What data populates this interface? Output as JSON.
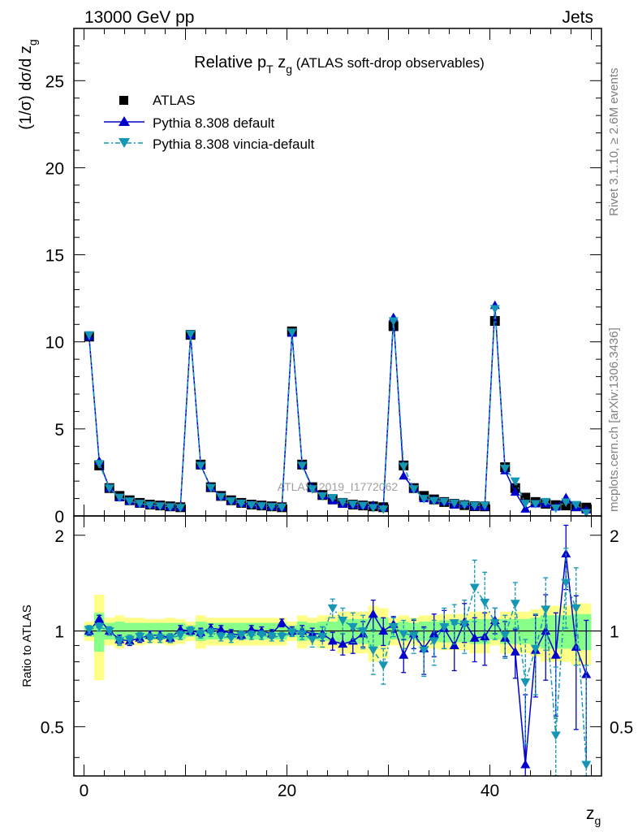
{
  "header": {
    "left": "13000 GeV pp",
    "right": "Jets"
  },
  "side": {
    "top": "Rivet 3.1.10, ≥ 2.6M events",
    "bottom": "mcplots.cern.ch [arXiv:1306.3436]"
  },
  "watermark": "ATLAS_2019_I1772062",
  "colors": {
    "atlas": "#000000",
    "default": "#0000cc",
    "vincia": "#1496b4",
    "band_outer": "#ffff88",
    "band_inner": "#88ff88"
  },
  "chart_data": [
    {
      "type": "scatter",
      "title_parts": [
        "Relative p",
        "T",
        " z",
        "g",
        " (ATLAS soft-drop observables)"
      ],
      "ylabel_parts": [
        "(1/σ) dσ/d z",
        "g"
      ],
      "ylim": [
        0,
        28
      ],
      "yticks": [
        0,
        5,
        10,
        15,
        20,
        25
      ],
      "xlim": [
        -1,
        51
      ],
      "x": [
        0.5,
        1.5,
        2.5,
        3.5,
        4.5,
        5.5,
        6.5,
        7.5,
        8.5,
        9.5,
        10.5,
        11.5,
        12.5,
        13.5,
        14.5,
        15.5,
        16.5,
        17.5,
        18.5,
        19.5,
        20.5,
        21.5,
        22.5,
        23.5,
        24.5,
        25.5,
        26.5,
        27.5,
        28.5,
        29.5,
        30.5,
        31.5,
        32.5,
        33.5,
        34.5,
        35.5,
        36.5,
        37.5,
        38.5,
        39.5,
        40.5,
        41.5,
        42.5,
        43.5,
        44.5,
        45.5,
        46.5,
        47.5,
        48.5,
        49.5
      ],
      "series": [
        {
          "name": "ATLAS",
          "marker": "square",
          "values": [
            10.3,
            2.9,
            1.6,
            1.15,
            0.9,
            0.75,
            0.65,
            0.6,
            0.55,
            0.5,
            10.4,
            2.95,
            1.65,
            1.15,
            0.9,
            0.75,
            0.65,
            0.6,
            0.55,
            0.5,
            10.6,
            2.95,
            1.65,
            1.2,
            0.95,
            0.75,
            0.65,
            0.6,
            0.55,
            0.5,
            10.9,
            2.9,
            1.6,
            1.15,
            0.95,
            0.8,
            0.7,
            0.62,
            0.56,
            0.55,
            11.2,
            2.8,
            1.6,
            1.05,
            0.8,
            0.7,
            0.62,
            0.6,
            0.55,
            0.48
          ]
        },
        {
          "name": "Pythia 8.308 default",
          "marker": "triangle-up",
          "values": [
            10.3,
            3.15,
            1.6,
            1.05,
            0.85,
            0.7,
            0.63,
            0.6,
            0.52,
            0.5,
            10.4,
            2.92,
            1.63,
            1.12,
            0.88,
            0.73,
            0.66,
            0.6,
            0.54,
            0.5,
            10.5,
            2.95,
            1.62,
            1.18,
            0.88,
            0.68,
            0.63,
            0.6,
            0.62,
            0.5,
            11.4,
            2.3,
            1.57,
            1.0,
            0.93,
            0.82,
            0.63,
            0.67,
            0.53,
            0.53,
            12.1,
            2.6,
            1.37,
            0.4,
            0.7,
            0.7,
            0.52,
            1.05,
            0.49,
            0.35
          ]
        },
        {
          "name": "Pythia 8.308 vincia-default",
          "marker": "triangle-down",
          "values": [
            10.4,
            3.0,
            1.6,
            1.07,
            0.85,
            0.72,
            0.62,
            0.57,
            0.52,
            0.48,
            10.45,
            2.9,
            1.63,
            1.1,
            0.86,
            0.73,
            0.63,
            0.58,
            0.53,
            0.5,
            10.55,
            2.9,
            1.55,
            1.15,
            1.05,
            0.8,
            0.67,
            0.6,
            0.48,
            0.39,
            11.2,
            2.85,
            1.55,
            1.0,
            0.88,
            0.82,
            0.74,
            0.65,
            0.6,
            0.61,
            11.9,
            2.73,
            2.0,
            0.72,
            0.7,
            0.82,
            0.45,
            0.8,
            0.65,
            0.18
          ]
        }
      ]
    },
    {
      "type": "scatter",
      "ylabel": "Ratio to ATLAS",
      "xlabel_parts": [
        "z",
        "g"
      ],
      "ylim": [
        0.35,
        2.3
      ],
      "yticks": [
        0.5,
        1,
        2
      ],
      "xlim": [
        -1,
        51
      ],
      "xticks": [
        0,
        20,
        40
      ],
      "x": [
        0.5,
        1.5,
        2.5,
        3.5,
        4.5,
        5.5,
        6.5,
        7.5,
        8.5,
        9.5,
        10.5,
        11.5,
        12.5,
        13.5,
        14.5,
        15.5,
        16.5,
        17.5,
        18.5,
        19.5,
        20.5,
        21.5,
        22.5,
        23.5,
        24.5,
        25.5,
        26.5,
        27.5,
        28.5,
        29.5,
        30.5,
        31.5,
        32.5,
        33.5,
        34.5,
        35.5,
        36.5,
        37.5,
        38.5,
        39.5,
        40.5,
        41.5,
        42.5,
        43.5,
        44.5,
        45.5,
        46.5,
        47.5,
        48.5,
        49.5
      ],
      "band_outer_halfwidth": [
        0.07,
        0.3,
        0.1,
        0.12,
        0.1,
        0.1,
        0.09,
        0.09,
        0.1,
        0.09,
        0.07,
        0.12,
        0.1,
        0.1,
        0.1,
        0.1,
        0.1,
        0.1,
        0.1,
        0.1,
        0.07,
        0.12,
        0.1,
        0.12,
        0.12,
        0.15,
        0.15,
        0.15,
        0.2,
        0.18,
        0.1,
        0.12,
        0.1,
        0.12,
        0.12,
        0.13,
        0.13,
        0.13,
        0.15,
        0.15,
        0.1,
        0.15,
        0.15,
        0.15,
        0.17,
        0.2,
        0.2,
        0.2,
        0.22,
        0.22
      ],
      "band_inner_halfwidth": [
        0.04,
        0.14,
        0.06,
        0.07,
        0.06,
        0.06,
        0.06,
        0.06,
        0.06,
        0.06,
        0.04,
        0.07,
        0.06,
        0.06,
        0.06,
        0.06,
        0.06,
        0.06,
        0.06,
        0.06,
        0.04,
        0.07,
        0.06,
        0.07,
        0.07,
        0.09,
        0.09,
        0.09,
        0.12,
        0.1,
        0.06,
        0.07,
        0.06,
        0.07,
        0.07,
        0.08,
        0.08,
        0.08,
        0.09,
        0.09,
        0.06,
        0.09,
        0.09,
        0.09,
        0.1,
        0.12,
        0.12,
        0.12,
        0.13,
        0.13
      ],
      "series": [
        {
          "name": "Pythia 8.308 default",
          "values": [
            1.0,
            1.09,
            1.0,
            0.94,
            0.93,
            0.95,
            0.97,
            0.97,
            0.95,
            1.01,
            1.0,
            0.99,
            1.02,
            1.01,
            0.98,
            0.97,
            1.01,
            1.0,
            0.98,
            1.06,
            1.0,
            1.0,
            0.98,
            0.98,
            0.93,
            0.91,
            0.93,
            0.98,
            1.13,
            1.0,
            1.05,
            0.84,
            0.98,
            0.88,
            0.98,
            1.02,
            0.9,
            1.07,
            0.95,
            0.96,
            1.08,
            0.95,
            0.86,
            0.38,
            0.87,
            1.0,
            0.84,
            1.75,
            0.89,
            0.73
          ],
          "errors": [
            0.03,
            0.03,
            0.03,
            0.03,
            0.03,
            0.03,
            0.03,
            0.03,
            0.03,
            0.03,
            0.03,
            0.03,
            0.03,
            0.03,
            0.03,
            0.03,
            0.03,
            0.03,
            0.03,
            0.03,
            0.03,
            0.04,
            0.04,
            0.05,
            0.06,
            0.07,
            0.08,
            0.09,
            0.12,
            0.1,
            0.06,
            0.1,
            0.1,
            0.15,
            0.15,
            0.14,
            0.15,
            0.15,
            0.15,
            0.18,
            0.1,
            0.12,
            0.15,
            0.25,
            0.25,
            0.3,
            0.3,
            0.4,
            0.4,
            0.35
          ]
        },
        {
          "name": "Pythia 8.308 vincia-default",
          "values": [
            1.01,
            1.03,
            1.0,
            0.93,
            0.94,
            0.96,
            0.95,
            0.95,
            0.95,
            0.97,
            1.0,
            0.98,
            0.99,
            0.96,
            0.95,
            0.97,
            0.97,
            0.97,
            0.96,
            0.96,
            0.99,
            0.98,
            0.94,
            0.96,
            1.18,
            1.08,
            1.03,
            1.0,
            0.87,
            0.78,
            1.03,
            0.98,
            0.97,
            0.87,
            0.93,
            1.03,
            1.06,
            1.05,
            1.37,
            1.23,
            1.06,
            0.97,
            1.22,
            0.69,
            0.88,
            1.17,
            0.47,
            1.42,
            1.18,
            0.38
          ],
          "errors": [
            0.03,
            0.03,
            0.03,
            0.03,
            0.03,
            0.03,
            0.03,
            0.03,
            0.03,
            0.03,
            0.03,
            0.03,
            0.03,
            0.03,
            0.03,
            0.03,
            0.03,
            0.03,
            0.03,
            0.03,
            0.03,
            0.04,
            0.05,
            0.07,
            0.08,
            0.1,
            0.11,
            0.12,
            0.14,
            0.1,
            0.07,
            0.1,
            0.12,
            0.15,
            0.15,
            0.15,
            0.15,
            0.2,
            0.3,
            0.3,
            0.12,
            0.15,
            0.2,
            0.25,
            0.25,
            0.3,
            0.3,
            0.4,
            0.4,
            0.4
          ]
        }
      ]
    }
  ]
}
